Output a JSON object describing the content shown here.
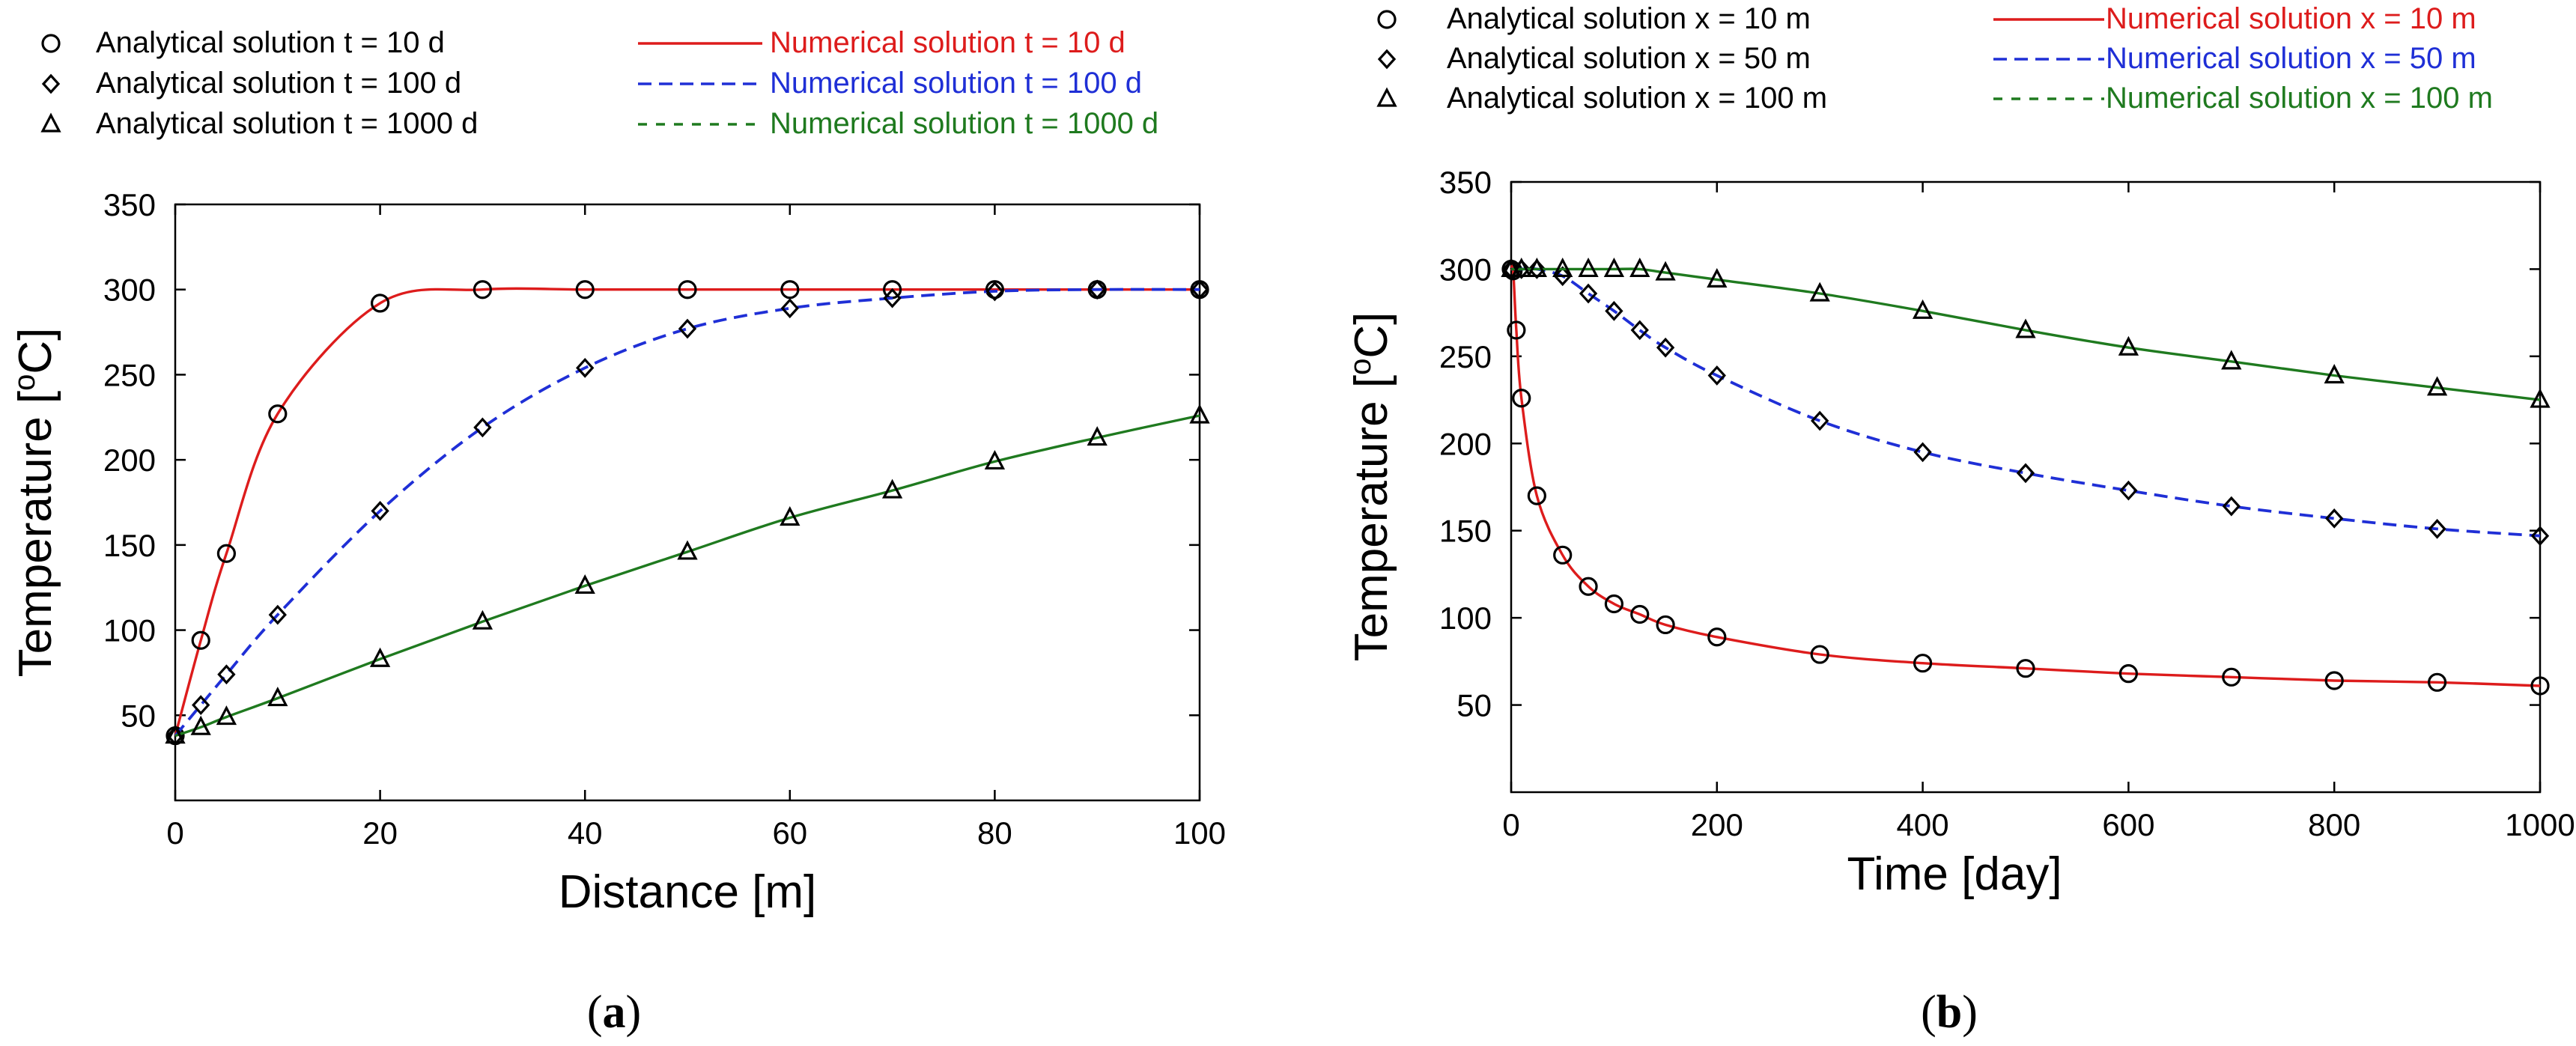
{
  "chart_data": [
    {
      "panel_label": "(a)",
      "panel_letter": "a",
      "type": "scatter",
      "xlabel": "Distance [m]",
      "ylabel": "Temperature [oC]",
      "xlim": [
        0,
        100
      ],
      "ylim": [
        0,
        350
      ],
      "xticks": [
        0,
        20,
        40,
        60,
        80,
        100
      ],
      "yticks": [
        50,
        100,
        150,
        200,
        250,
        300,
        350
      ],
      "grid": false,
      "legend_position": "top",
      "legend": {
        "analytical": [
          "Analytical solution t =  10 d",
          "Analytical solution t =  100 d",
          "Analytical solution t =  1000 d"
        ],
        "numerical": [
          "Numerical solution t = 10 d",
          "Numerical solution t = 100 d",
          "Numerical solution t = 1000 d"
        ]
      },
      "series": [
        {
          "marker": "circle",
          "line_style": "solid",
          "color": "#dd1c1c",
          "x": [
            0,
            2.5,
            5,
            10,
            20,
            30,
            40,
            50,
            60,
            70,
            80,
            90,
            100
          ],
          "y": [
            38,
            94,
            145,
            227,
            292,
            300,
            300,
            300,
            300,
            300,
            300,
            300,
            300
          ]
        },
        {
          "marker": "diamond",
          "line_style": "dashed",
          "color": "#1f2fd6",
          "x": [
            0,
            2.5,
            5,
            10,
            20,
            30,
            40,
            50,
            60,
            70,
            80,
            90,
            100
          ],
          "y": [
            38,
            56,
            74,
            109,
            170,
            219,
            254,
            277,
            289,
            295,
            299,
            300,
            300
          ]
        },
        {
          "marker": "triangle",
          "line_style": "solid",
          "color": "#1f7a1f",
          "x": [
            0,
            2.5,
            5,
            10,
            20,
            30,
            40,
            50,
            60,
            70,
            80,
            90,
            100
          ],
          "y": [
            38,
            43,
            49,
            60,
            83,
            105,
            126,
            146,
            166,
            182,
            199,
            213,
            226
          ]
        }
      ]
    },
    {
      "panel_label": "(b)",
      "panel_letter": "b",
      "type": "scatter",
      "xlabel": "Time [day]",
      "ylabel": "Temperature [oC]",
      "xlim": [
        0,
        1000
      ],
      "ylim": [
        0,
        350
      ],
      "xticks": [
        0,
        200,
        400,
        600,
        800,
        1000
      ],
      "yticks": [
        50,
        100,
        150,
        200,
        250,
        300,
        350
      ],
      "grid": false,
      "legend_position": "top",
      "legend": {
        "analytical": [
          "Analytical solution x = 10 m",
          "Analytical solution x = 50 m",
          "Analytical solution x = 100 m"
        ],
        "numerical": [
          "Numerical solution x = 10 m",
          "Numerical solution x = 50 m",
          "Numerical solution x = 100 m"
        ]
      },
      "series": [
        {
          "marker": "circle",
          "line_style": "solid",
          "color": "#dd1c1c",
          "x": [
            0,
            2,
            5,
            10,
            25,
            50,
            75,
            100,
            125,
            150,
            200,
            300,
            400,
            500,
            600,
            700,
            800,
            900,
            1000
          ],
          "y": [
            300,
            299,
            265,
            226,
            170,
            136,
            118,
            108,
            102,
            96,
            89,
            79,
            74,
            71,
            68,
            66,
            64,
            63,
            61
          ]
        },
        {
          "marker": "diamond",
          "line_style": "dashed",
          "color": "#1f2fd6",
          "x": [
            0,
            10,
            25,
            50,
            75,
            100,
            125,
            150,
            200,
            300,
            400,
            500,
            600,
            700,
            800,
            900,
            1000
          ],
          "y": [
            300,
            300,
            300,
            296,
            286,
            276,
            265,
            255,
            239,
            213,
            195,
            183,
            173,
            164,
            157,
            151,
            147
          ]
        },
        {
          "marker": "triangle",
          "line_style": "solid",
          "color": "#1f7a1f",
          "x": [
            0,
            10,
            25,
            50,
            75,
            100,
            125,
            150,
            200,
            300,
            400,
            500,
            600,
            700,
            800,
            900,
            1000
          ],
          "y": [
            300,
            300,
            300,
            300,
            300,
            300,
            300,
            298,
            294,
            286,
            276,
            265,
            255,
            247,
            239,
            232,
            225
          ]
        }
      ]
    }
  ]
}
